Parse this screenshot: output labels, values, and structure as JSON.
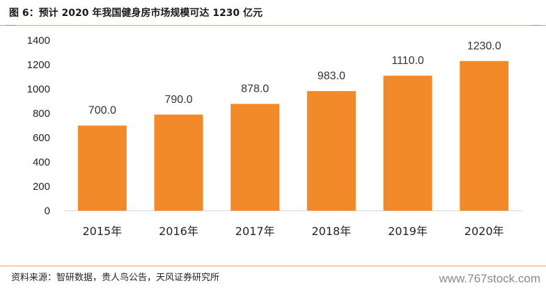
{
  "header": {
    "title": "图 6：预计 2020 年我国健身房市场规模可达 1230 亿元"
  },
  "footer": {
    "source": "资料来源：智研数据，贵人鸟公告，天风证券研究所",
    "watermark": "www.767stock.com"
  },
  "colors": {
    "bar": "#f28a2a",
    "accent_rule": "#f0a35c"
  },
  "chart_data": {
    "type": "bar",
    "categories": [
      "2015年",
      "2016年",
      "2017年",
      "2018年",
      "2019年",
      "2020年"
    ],
    "values": [
      700.0,
      790.0,
      878.0,
      983.0,
      1110.0,
      1230.0
    ],
    "data_labels": [
      "700.0",
      "790.0",
      "878.0",
      "983.0",
      "1110.0",
      "1230.0"
    ],
    "title": "",
    "xlabel": "",
    "ylabel": "",
    "ylim": [
      0,
      1400
    ],
    "yticks": [
      0,
      200,
      400,
      600,
      800,
      1000,
      1200,
      1400
    ],
    "grid": false,
    "legend": "none"
  }
}
